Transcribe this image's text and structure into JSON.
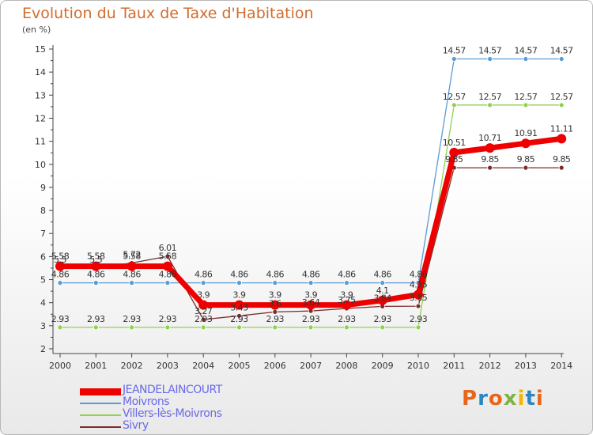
{
  "title": "Evolution du Taux de Taxe d'Habitation",
  "unit_label": "(en %)",
  "logo": {
    "letters": [
      "P",
      "r",
      "o",
      "x",
      "i",
      "t",
      "i"
    ],
    "colors": [
      "#e8661c",
      "#2e86c1",
      "#e8661c",
      "#7cb342",
      "#f2b705",
      "#2e86c1",
      "#e8661c"
    ]
  },
  "chart_data": {
    "type": "line",
    "title": "Evolution du Taux de Taxe d'Habitation",
    "ylabel": "(en %)",
    "xlabel": "",
    "x": [
      "2000",
      "2001",
      "2002",
      "2003",
      "2004",
      "2005",
      "2006",
      "2007",
      "2008",
      "2009",
      "2010",
      "2011",
      "2012",
      "2013",
      "2014"
    ],
    "ylim": [
      2,
      15
    ],
    "yticks": [
      "2",
      "3",
      "4",
      "5",
      "6",
      "7",
      "8",
      "9",
      "10",
      "11",
      "12",
      "13",
      "14",
      "15"
    ],
    "grid": false,
    "legend_position": "bottom-left",
    "series": [
      {
        "name": "JEANDELAINCOURT",
        "color": "#ee0000",
        "values": [
          5.58,
          5.58,
          5.58,
          5.58,
          3.9,
          3.9,
          3.9,
          3.9,
          3.9,
          4.1,
          4.35,
          10.51,
          10.71,
          10.91,
          11.11
        ],
        "labels": [
          "5.58",
          "5.58",
          "5.58",
          "5.58",
          "3.9",
          "3.9",
          "3.9",
          "3.9",
          "3.9",
          "4.1",
          "4.35",
          "10.51",
          "10.71",
          "10.91",
          "11.11"
        ]
      },
      {
        "name": "Moivrons",
        "color": "#5b9bd5",
        "values": [
          4.86,
          4.86,
          4.86,
          4.86,
          4.86,
          4.86,
          4.86,
          4.86,
          4.86,
          4.86,
          4.86,
          14.57,
          14.57,
          14.57,
          14.57
        ],
        "labels": [
          "4.86",
          "4.86",
          "4.86",
          "4.86",
          "4.86",
          "4.86",
          "4.86",
          "4.86",
          "4.86",
          "4.86",
          "4.86",
          "14.57",
          "14.57",
          "14.57",
          "14.57"
        ]
      },
      {
        "name": "Villers-lès-Moivrons",
        "color": "#8fd14f",
        "values": [
          2.93,
          2.93,
          2.93,
          2.93,
          2.93,
          2.93,
          2.93,
          2.93,
          2.93,
          2.93,
          2.93,
          12.57,
          12.57,
          12.57,
          12.57
        ],
        "labels": [
          "2.93",
          "2.93",
          "2.93",
          "2.93",
          "2.93",
          "2.93",
          "2.93",
          "2.93",
          "2.93",
          "2.93",
          "2.93",
          "12.57",
          "12.57",
          "12.57",
          "12.57"
        ]
      },
      {
        "name": "Sivry",
        "color": "#7b2c2c",
        "values": [
          5.5,
          5.5,
          5.72,
          6.01,
          3.27,
          3.43,
          3.6,
          3.64,
          3.75,
          3.84,
          3.85,
          9.85,
          9.85,
          9.85,
          9.85
        ],
        "labels": [
          "5.5",
          "5.5",
          "5.72",
          "6.01",
          "3.27",
          "3.43",
          "3.6",
          "3.64",
          "3.75",
          "3.84",
          "3.85",
          "9.85",
          "9.85",
          "9.85",
          "9.85"
        ]
      }
    ]
  }
}
